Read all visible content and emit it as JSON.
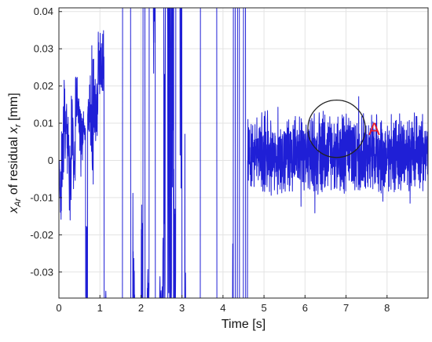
{
  "chart_data": {
    "type": "line",
    "title": "",
    "xlabel": "Time [s]",
    "ylabel": {
      "var": "x",
      "var_sub": "Ar",
      "middle": " of residual ",
      "var2": "x",
      "var2_sub": "r",
      "unit": " [mm]"
    },
    "xlim": [
      0,
      9
    ],
    "ylim": [
      -0.037,
      0.041
    ],
    "x_ticks": [
      0,
      1,
      2,
      3,
      4,
      5,
      6,
      7,
      8
    ],
    "x_tick_labels": [
      "0",
      "1",
      "2",
      "3",
      "4",
      "5",
      "6",
      "7",
      "8"
    ],
    "y_ticks": [
      -0.03,
      -0.02,
      -0.01,
      0,
      0.01,
      0.02,
      0.03,
      0.04
    ],
    "y_tick_labels": [
      "-0.03",
      "-0.02",
      "-0.01",
      "0",
      "0.01",
      "0.02",
      "0.03",
      "0.04"
    ],
    "grid": true,
    "series": [
      {
        "color": "#1f1fd6",
        "x": [
          0.0,
          0.05,
          0.1,
          0.15,
          0.2,
          0.3,
          0.4,
          0.5,
          0.6,
          0.7,
          0.8,
          0.9,
          1.0,
          1.1,
          1.2,
          1.3,
          1.4,
          1.5,
          1.6,
          1.7,
          1.8,
          1.9,
          2.0,
          2.1,
          2.2,
          2.3,
          2.4,
          2.5,
          2.6,
          2.7,
          2.8,
          2.9,
          3.0,
          3.1,
          3.2,
          3.3,
          3.4,
          3.5,
          3.6,
          3.7,
          3.8,
          3.9,
          4.0,
          4.1,
          4.2,
          4.3,
          4.4,
          4.5,
          4.6,
          4.7,
          4.8,
          4.9,
          5.0,
          5.1,
          5.2,
          5.3,
          5.4,
          5.5,
          5.6,
          5.7,
          5.8,
          5.9,
          6.0,
          6.1,
          6.2,
          6.3,
          6.4,
          6.5,
          6.6,
          6.7,
          6.8,
          6.9,
          7.0,
          7.1,
          7.2,
          7.3,
          7.4,
          7.5,
          7.6,
          7.7,
          7.8,
          7.9,
          8.0,
          8.1,
          8.2,
          8.3,
          8.4,
          8.5,
          8.6,
          8.7,
          8.8,
          8.9,
          9.0
        ],
        "y": [
          -0.005,
          -0.008,
          0.006,
          0.015,
          0.008,
          -0.002,
          0.004,
          0.002,
          0.003,
          0.0,
          -0.003,
          -0.005,
          -0.007,
          -0.009,
          -0.006,
          -0.008,
          -0.01,
          -0.012,
          -0.014,
          -0.016,
          -0.019,
          -0.022,
          -0.025,
          -0.024,
          -0.019,
          -0.014,
          -0.01,
          -0.005,
          0.0,
          0.005,
          0.011,
          0.014,
          0.01,
          0.003,
          -0.003,
          -0.007,
          -0.005,
          -0.004,
          -0.002,
          0.0,
          0.002,
          0.003,
          0.0,
          0.002,
          0.003,
          0.001,
          -0.002,
          -0.003,
          0.0,
          0.003,
          0.004,
          0.005,
          0.005,
          0.002,
          0.0,
          0.001,
          -0.001,
          0.0,
          -0.003,
          -0.005,
          -0.006,
          -0.004,
          -0.003,
          -0.001,
          0.001,
          0.002,
          0.004,
          0.006,
          0.009,
          0.011,
          0.009,
          0.004,
          -0.001,
          -0.006,
          -0.01,
          -0.013,
          -0.016,
          -0.018,
          -0.014,
          -0.01,
          -0.007,
          -0.004,
          -0.002,
          0.0,
          0.001,
          0.002,
          0.0,
          0.001,
          -0.001,
          0.0,
          0.001,
          0.0,
          0.002
        ],
        "amplitude": [
          0.01,
          0.012,
          0.018,
          0.018,
          0.014,
          0.012,
          0.011,
          0.011,
          0.011,
          0.011,
          0.012,
          0.011,
          0.011,
          0.012,
          0.011,
          0.011,
          0.011,
          0.01,
          0.01,
          0.01,
          0.01,
          0.01,
          0.01,
          0.01,
          0.01,
          0.01,
          0.01,
          0.01,
          0.01,
          0.01,
          0.009,
          0.009,
          0.01,
          0.01,
          0.011,
          0.01,
          0.01,
          0.009,
          0.009,
          0.009,
          0.009,
          0.01,
          0.01,
          0.011,
          0.011,
          0.011,
          0.011,
          0.012,
          0.013,
          0.013,
          0.013,
          0.014,
          0.017,
          0.016,
          0.013,
          0.019,
          0.014,
          0.013,
          0.012,
          0.012,
          0.011,
          0.011,
          0.01,
          0.01,
          0.011,
          0.011,
          0.009,
          0.008,
          0.008,
          0.008,
          0.008,
          0.008,
          0.009,
          0.01,
          0.01,
          0.01,
          0.01,
          0.011,
          0.011,
          0.011,
          0.011,
          0.011,
          0.011,
          0.011,
          0.011,
          0.012,
          0.012,
          0.012,
          0.012,
          0.012,
          0.012,
          0.012,
          0.012
        ]
      }
    ],
    "annotation": {
      "label": "A",
      "label_color": "#e8202a",
      "circle_color": "#222222",
      "center": [
        6.77,
        0.0085
      ],
      "radius_x": 0.7
    }
  }
}
